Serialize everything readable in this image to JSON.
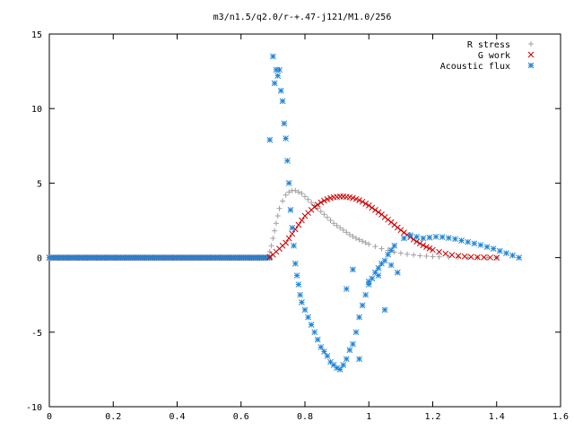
{
  "chart_data": {
    "type": "scatter",
    "title": "m3/n1.5/q2.0/r-+.47-j121/M1.0/256",
    "xlabel": "",
    "ylabel": "",
    "xlim": [
      0,
      1.6
    ],
    "ylim": [
      -10,
      15
    ],
    "xticks": [
      "0",
      "0.2",
      "0.4",
      "0.6",
      "0.8",
      "1",
      "1.2",
      "1.4",
      "1.6"
    ],
    "yticks": [
      "-10",
      "-5",
      "0",
      "5",
      "10",
      "15"
    ],
    "grid": false,
    "legend_position": "top-right",
    "series": [
      {
        "name": "R stress",
        "marker": "plus",
        "color": "#a0a0a4",
        "x": [
          0.69,
          0.695,
          0.7,
          0.705,
          0.71,
          0.715,
          0.72,
          0.73,
          0.74,
          0.75,
          0.76,
          0.77,
          0.78,
          0.79,
          0.8,
          0.81,
          0.82,
          0.83,
          0.84,
          0.85,
          0.86,
          0.87,
          0.88,
          0.89,
          0.9,
          0.91,
          0.92,
          0.93,
          0.94,
          0.95,
          0.96,
          0.97,
          0.98,
          0.99,
          1.0,
          1.02,
          1.04,
          1.06,
          1.08,
          1.1,
          1.12,
          1.14,
          1.16,
          1.18,
          1.2,
          1.22,
          1.25,
          1.28,
          1.31,
          1.34,
          1.37,
          1.4
        ],
        "y": [
          0.4,
          0.8,
          1.3,
          1.8,
          2.3,
          2.8,
          3.3,
          3.8,
          4.2,
          4.4,
          4.5,
          4.5,
          4.4,
          4.3,
          4.1,
          3.9,
          3.7,
          3.5,
          3.3,
          3.1,
          2.9,
          2.7,
          2.5,
          2.3,
          2.15,
          2.0,
          1.85,
          1.7,
          1.55,
          1.42,
          1.3,
          1.2,
          1.1,
          1.0,
          0.9,
          0.75,
          0.6,
          0.48,
          0.38,
          0.3,
          0.23,
          0.18,
          0.13,
          0.1,
          0.07,
          0.05,
          0.03,
          0.02,
          0.01,
          0.0,
          0.0,
          0.0
        ]
      },
      {
        "name": "G work",
        "marker": "cross",
        "color": "#cc0000",
        "x": [
          0.69,
          0.7,
          0.71,
          0.72,
          0.73,
          0.74,
          0.75,
          0.76,
          0.77,
          0.78,
          0.79,
          0.8,
          0.81,
          0.82,
          0.83,
          0.84,
          0.85,
          0.86,
          0.87,
          0.88,
          0.89,
          0.9,
          0.91,
          0.92,
          0.93,
          0.94,
          0.95,
          0.96,
          0.97,
          0.98,
          0.99,
          1.0,
          1.01,
          1.02,
          1.03,
          1.04,
          1.05,
          1.06,
          1.07,
          1.08,
          1.09,
          1.1,
          1.11,
          1.12,
          1.13,
          1.14,
          1.15,
          1.16,
          1.17,
          1.18,
          1.19,
          1.2,
          1.22,
          1.24,
          1.26,
          1.28,
          1.3,
          1.32,
          1.34,
          1.36,
          1.38,
          1.4
        ],
        "y": [
          0.05,
          0.2,
          0.4,
          0.6,
          0.8,
          1.0,
          1.3,
          1.6,
          1.9,
          2.2,
          2.5,
          2.8,
          3.0,
          3.2,
          3.4,
          3.55,
          3.7,
          3.82,
          3.92,
          4.0,
          4.05,
          4.08,
          4.1,
          4.1,
          4.08,
          4.05,
          4.0,
          3.93,
          3.85,
          3.75,
          3.62,
          3.5,
          3.35,
          3.2,
          3.05,
          2.9,
          2.72,
          2.55,
          2.38,
          2.2,
          2.02,
          1.85,
          1.68,
          1.52,
          1.37,
          1.22,
          1.08,
          0.95,
          0.83,
          0.72,
          0.62,
          0.52,
          0.38,
          0.27,
          0.18,
          0.12,
          0.08,
          0.05,
          0.03,
          0.02,
          0.01,
          0.0
        ]
      },
      {
        "name": "Acoustic flux",
        "marker": "star",
        "color": "#1f84d6",
        "x": [
          0.69,
          0.7,
          0.705,
          0.71,
          0.715,
          0.72,
          0.725,
          0.73,
          0.735,
          0.74,
          0.745,
          0.75,
          0.755,
          0.76,
          0.765,
          0.77,
          0.775,
          0.78,
          0.785,
          0.79,
          0.8,
          0.81,
          0.82,
          0.83,
          0.84,
          0.85,
          0.86,
          0.87,
          0.88,
          0.89,
          0.9,
          0.91,
          0.92,
          0.93,
          0.94,
          0.95,
          0.96,
          0.97,
          0.98,
          0.99,
          1.0,
          1.01,
          1.02,
          1.03,
          1.04,
          1.05,
          1.06,
          1.07,
          1.08,
          0.93,
          0.95,
          0.97,
          1.0,
          1.03,
          1.05,
          1.07,
          1.09,
          1.11,
          1.13,
          1.15,
          1.17,
          1.19,
          1.21,
          1.23,
          1.25,
          1.27,
          1.29,
          1.31,
          1.33,
          1.35,
          1.37,
          1.39,
          1.41,
          1.43,
          1.45,
          1.47
        ],
        "y": [
          7.9,
          13.5,
          11.7,
          12.6,
          12.2,
          12.6,
          11.2,
          10.5,
          9.0,
          8.0,
          6.5,
          5.0,
          3.2,
          2.0,
          0.8,
          -0.4,
          -1.2,
          -1.8,
          -2.5,
          -3.0,
          -3.5,
          -4.0,
          -4.5,
          -5.0,
          -5.5,
          -6.0,
          -6.3,
          -6.6,
          -7.0,
          -7.2,
          -7.4,
          -7.5,
          -7.2,
          -6.8,
          -6.2,
          -5.8,
          -5.0,
          -4.0,
          -3.2,
          -2.5,
          -1.8,
          -1.4,
          -1.0,
          -0.7,
          -0.4,
          -0.2,
          0.2,
          0.5,
          0.8,
          -2.1,
          -0.8,
          -6.8,
          -1.6,
          -1.2,
          -3.5,
          -0.5,
          -1.0,
          1.3,
          1.5,
          1.4,
          1.3,
          1.35,
          1.4,
          1.38,
          1.32,
          1.25,
          1.15,
          1.05,
          0.95,
          0.85,
          0.72,
          0.6,
          0.45,
          0.3,
          0.15,
          0.0
        ]
      }
    ],
    "baseline": {
      "x_start": 0.0,
      "x_end": 0.69,
      "y": 0
    }
  }
}
